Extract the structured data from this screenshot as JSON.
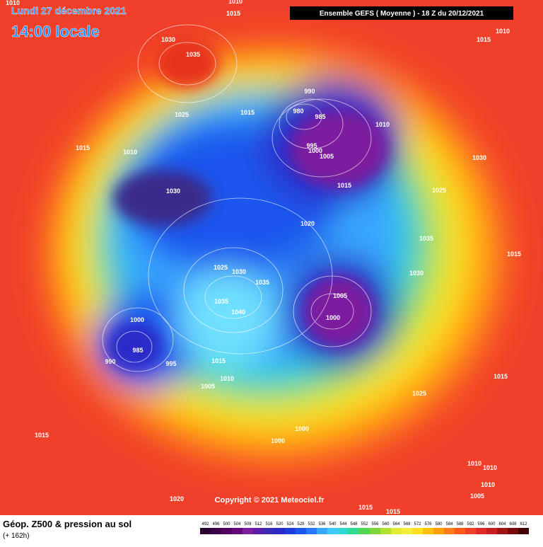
{
  "header": {
    "date": "Lundi 27 décembre 2021",
    "time": "14:00 locale",
    "model": "Ensemble GEFS  ( Moyenne )  -  18 Z du 20/12/2021"
  },
  "copyright": "Copyright © 2021 Meteociel.fr",
  "footer": {
    "title": "Géop. Z500 & pression au sol",
    "subtitle": "(+ 162h)"
  },
  "isobars": [
    "1010",
    "1010",
    "1015",
    "1030",
    "1035",
    "1025",
    "1015",
    "1015",
    "1010",
    "1030",
    "990",
    "980",
    "985",
    "995",
    "1000",
    "1005",
    "1010",
    "1015",
    "1020",
    "1025",
    "1030",
    "1035",
    "1035",
    "1040",
    "1005",
    "1000",
    "1000",
    "985",
    "990",
    "995",
    "1015",
    "1010",
    "1005",
    "1025",
    "1000",
    "1000",
    "1015",
    "1020",
    "1015",
    "1015",
    "1010",
    "1015",
    "1030",
    "1025",
    "1035",
    "1030",
    "1015",
    "1015",
    "1010",
    "1010",
    "1010",
    "1005"
  ],
  "scale": [
    492,
    496,
    500,
    504,
    508,
    512,
    516,
    520,
    524,
    528,
    532,
    536,
    540,
    544,
    548,
    552,
    556,
    560,
    564,
    568,
    572,
    576,
    580,
    584,
    588,
    592,
    596,
    600,
    604,
    608,
    612
  ]
}
